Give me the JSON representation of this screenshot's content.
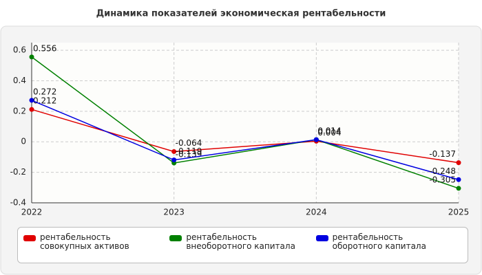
{
  "chart_data": {
    "type": "line",
    "title": "Динамика показателей экономическая рентабельности",
    "categories": [
      "2022",
      "2023",
      "2024",
      "2025"
    ],
    "series": [
      {
        "name": "рентабельность совокупных активов",
        "color": "#e00000",
        "values": [
          0.212,
          -0.064,
          0.004,
          -0.137
        ]
      },
      {
        "name": "рентабельность внеоборотного капитала",
        "color": "#008000",
        "values": [
          0.556,
          -0.139,
          0.014,
          -0.305
        ]
      },
      {
        "name": "рентабельность оборотного капитала",
        "color": "#0000e0",
        "values": [
          0.272,
          -0.119,
          0.014,
          -0.248
        ]
      }
    ],
    "ylim": [
      -0.4,
      0.65
    ],
    "yticks": [
      -0.4,
      -0.2,
      0,
      0.2,
      0.4,
      0.6
    ],
    "grid": true
  }
}
